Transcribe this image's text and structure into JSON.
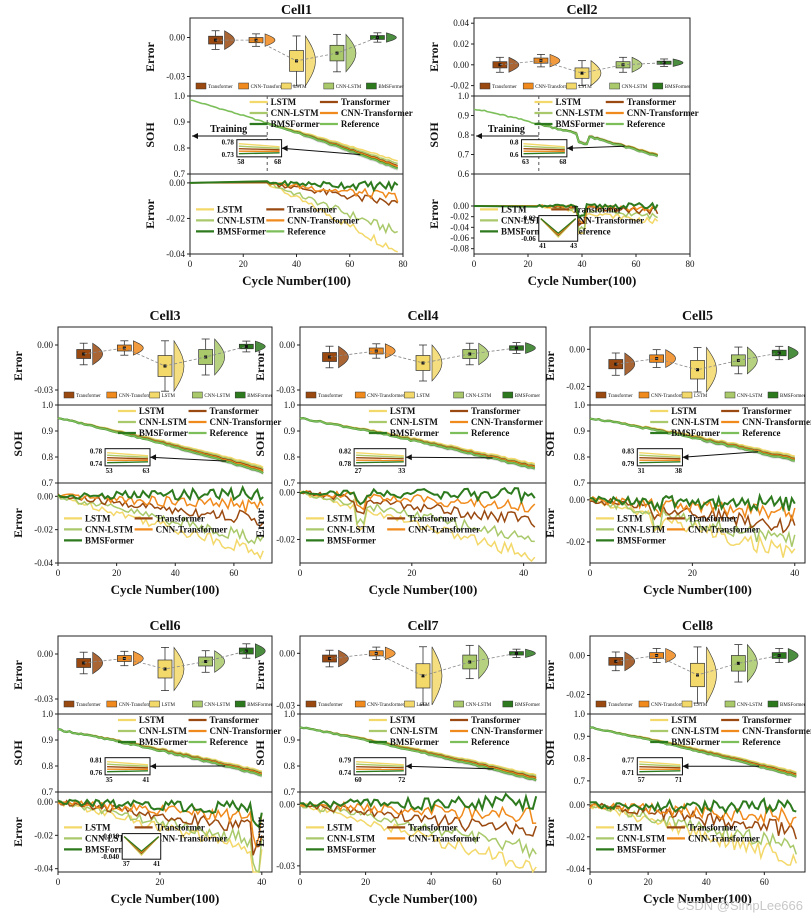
{
  "colors": {
    "Transformer": "#9a4a10",
    "CNN-Transformer": "#f08a1c",
    "LSTM": "#f3d86a",
    "CNN-LSTM": "#a9c96a",
    "BMSFormer": "#2d7a1e",
    "Reference": "#7cbf5a",
    "shade": "#c9c9c9"
  },
  "text": {
    "xlabel": "Cycle Number(100)",
    "soh_label": "SOH",
    "error_label": "Error",
    "training_label": "Training",
    "watermark": "CSDN @SimpLee666"
  },
  "chart_data": [
    {
      "type": "line",
      "title": "Cell1",
      "cell": 1,
      "x_max": 78,
      "xlim": [
        0,
        80
      ],
      "xticks": [
        0,
        20,
        40,
        60,
        80
      ],
      "train_end": 29,
      "soh": {
        "ylim": [
          0.7,
          1.0
        ],
        "yticks": [
          0.7,
          0.8,
          0.9,
          1.0
        ],
        "start": 0.985,
        "end": 0.72,
        "noise": 0.002,
        "dip": null,
        "offsets": {
          "LSTM": 0.03,
          "CNN-LSTM": 0.02,
          "Transformer": 0.012,
          "CNN-Transformer": 0.008,
          "BMSFormer": 0.001
        }
      },
      "err": {
        "ylim": [
          -0.04,
          0.005
        ],
        "yticks": [
          0.0,
          -0.02,
          -0.04
        ],
        "ends": {
          "LSTM": -0.038,
          "CNN-LSTM": -0.028,
          "Transformer": -0.012,
          "CNN-Transformer": -0.008,
          "BMSFormer": -0.002
        },
        "noise": 0.002,
        "spike": null,
        "legend_cols": 2,
        "has_ref": true
      },
      "box": {
        "ylim": [
          -0.045,
          0.015
        ],
        "yticks": [
          0.0,
          -0.03
        ],
        "medians": {
          "Transformer": -0.002,
          "CNN-Transformer": -0.002,
          "LSTM": -0.018,
          "CNN-LSTM": -0.012,
          "BMSFormer": 0.0
        },
        "spreads": {
          "Transformer": 0.006,
          "CNN-Transformer": 0.004,
          "LSTM": 0.016,
          "CNN-LSTM": 0.012,
          "BMSFormer": 0.003
        }
      },
      "inset": {
        "ylo": "0.73",
        "yhi": "0.78",
        "xlo": "58",
        "xhi": "68"
      }
    },
    {
      "type": "line",
      "title": "Cell2",
      "cell": 2,
      "x_max": 68,
      "xlim": [
        0,
        80
      ],
      "xticks": [
        0,
        20,
        40,
        60,
        80
      ],
      "train_end": 24,
      "soh": {
        "ylim": [
          0.6,
          1.0
        ],
        "yticks": [
          0.6,
          0.7,
          0.8,
          0.9,
          1.0
        ],
        "start": 0.935,
        "end": 0.69,
        "noise": 0.004,
        "dip": {
          "at": 40,
          "size": 0.04
        },
        "offsets": {
          "LSTM": 0.01,
          "CNN-LSTM": 0.008,
          "Transformer": 0.006,
          "CNN-Transformer": 0.004,
          "BMSFormer": 0.001
        }
      },
      "err": {
        "ylim": [
          -0.09,
          0.06
        ],
        "yticks": [
          0.0,
          -0.02,
          -0.04,
          -0.06,
          -0.08
        ],
        "ends": {
          "LSTM": -0.03,
          "CNN-LSTM": -0.02,
          "Transformer": -0.01,
          "CNN-Transformer": -0.006,
          "BMSFormer": 0.0
        },
        "noise": 0.004,
        "spike": {
          "at": 40,
          "size": -0.04
        },
        "legend_cols": 2,
        "has_ref": true
      },
      "box": {
        "ylim": [
          -0.03,
          0.045
        ],
        "yticks": [
          0.04,
          0.02,
          0.0,
          -0.02
        ],
        "medians": {
          "Transformer": 0.0,
          "CNN-Transformer": 0.004,
          "LSTM": -0.008,
          "CNN-LSTM": 0.0,
          "BMSFormer": 0.002
        },
        "spreads": {
          "Transformer": 0.006,
          "CNN-Transformer": 0.005,
          "LSTM": 0.01,
          "CNN-LSTM": 0.006,
          "BMSFormer": 0.003
        }
      },
      "inset": {
        "ylo": "0.6",
        "yhi": "0.8",
        "xlo": "63",
        "xhi": "68"
      },
      "err_inset": {
        "ylo": "-0.06",
        "yhi": "-0.02",
        "xlo": "41",
        "xhi": "43"
      }
    },
    {
      "type": "line",
      "title": "Cell3",
      "cell": 3,
      "x_max": 70,
      "xlim": [
        0,
        73
      ],
      "xticks": [
        0,
        20,
        40,
        60
      ],
      "train_end": null,
      "soh": {
        "ylim": [
          0.7,
          1.0
        ],
        "yticks": [
          0.7,
          0.8,
          0.9,
          1.0
        ],
        "start": 0.95,
        "end": 0.74,
        "noise": 0.002,
        "dip": null,
        "offsets": {
          "LSTM": 0.022,
          "CNN-LSTM": 0.016,
          "Transformer": 0.01,
          "CNN-Transformer": 0.006,
          "BMSFormer": 0.0
        }
      },
      "err": {
        "ylim": [
          -0.04,
          0.008
        ],
        "yticks": [
          0.0,
          -0.02,
          -0.04
        ],
        "ends": {
          "LSTM": -0.034,
          "CNN-LSTM": -0.026,
          "Transformer": -0.014,
          "CNN-Transformer": -0.006,
          "BMSFormer": 0.002
        },
        "noise": 0.003,
        "spike": null,
        "legend_cols": 2,
        "has_ref": false
      },
      "box": {
        "ylim": [
          -0.04,
          0.012
        ],
        "yticks": [
          0.0,
          -0.03
        ],
        "medians": {
          "Transformer": -0.006,
          "CNN-Transformer": -0.002,
          "LSTM": -0.014,
          "CNN-LSTM": -0.008,
          "BMSFormer": -0.001
        },
        "spreads": {
          "Transformer": 0.006,
          "CNN-Transformer": 0.004,
          "LSTM": 0.014,
          "CNN-LSTM": 0.01,
          "BMSFormer": 0.003
        }
      },
      "inset": {
        "ylo": "0.74",
        "yhi": "0.78",
        "xlo": "53",
        "xhi": "63"
      }
    },
    {
      "type": "line",
      "title": "Cell4",
      "cell": 4,
      "x_max": 42,
      "xlim": [
        0,
        44
      ],
      "xticks": [
        0,
        20,
        40
      ],
      "train_end": null,
      "soh": {
        "ylim": [
          0.7,
          1.0
        ],
        "yticks": [
          0.7,
          0.8,
          0.9,
          1.0
        ],
        "start": 0.95,
        "end": 0.755,
        "noise": 0.003,
        "dip": null,
        "offsets": {
          "LSTM": 0.018,
          "CNN-LSTM": 0.012,
          "Transformer": 0.008,
          "CNN-Transformer": 0.005,
          "BMSFormer": 0.0
        }
      },
      "err": {
        "ylim": [
          -0.03,
          0.004
        ],
        "yticks": [
          0.0,
          -0.02
        ],
        "ends": {
          "LSTM": -0.027,
          "CNN-LSTM": -0.02,
          "Transformer": -0.012,
          "CNN-Transformer": -0.006,
          "BMSFormer": -0.001
        },
        "noise": 0.002,
        "spike": {
          "at": 11,
          "size": -0.008
        },
        "legend_cols": 2,
        "has_ref": false
      },
      "box": {
        "ylim": [
          -0.04,
          0.012
        ],
        "yticks": [
          0.0,
          -0.03
        ],
        "medians": {
          "Transformer": -0.008,
          "CNN-Transformer": -0.004,
          "LSTM": -0.012,
          "CNN-LSTM": -0.006,
          "BMSFormer": -0.002
        },
        "spreads": {
          "Transformer": 0.006,
          "CNN-Transformer": 0.004,
          "LSTM": 0.01,
          "CNN-LSTM": 0.006,
          "BMSFormer": 0.003
        }
      },
      "inset": {
        "ylo": "0.78",
        "yhi": "0.82",
        "xlo": "27",
        "xhi": "33"
      }
    },
    {
      "type": "line",
      "title": "Cell5",
      "cell": 5,
      "x_max": 40,
      "xlim": [
        0,
        42
      ],
      "xticks": [
        0,
        20,
        40
      ],
      "train_end": null,
      "soh": {
        "ylim": [
          0.7,
          1.0
        ],
        "yticks": [
          0.7,
          0.8,
          0.9,
          1.0
        ],
        "start": 0.95,
        "end": 0.785,
        "noise": 0.003,
        "dip": null,
        "offsets": {
          "LSTM": 0.018,
          "CNN-LSTM": 0.012,
          "Transformer": 0.008,
          "CNN-Transformer": 0.005,
          "BMSFormer": 0.0
        }
      },
      "err": {
        "ylim": [
          -0.03,
          0.008
        ],
        "yticks": [
          0.0,
          -0.02
        ],
        "ends": {
          "LSTM": -0.026,
          "CNN-LSTM": -0.02,
          "Transformer": -0.012,
          "CNN-Transformer": -0.006,
          "BMSFormer": -0.002
        },
        "noise": 0.003,
        "spike": {
          "at": 13,
          "size": -0.006
        },
        "legend_cols": 2,
        "has_ref": false
      },
      "box": {
        "ylim": [
          -0.03,
          0.012
        ],
        "yticks": [
          0.0,
          -0.02
        ],
        "medians": {
          "Transformer": -0.008,
          "CNN-Transformer": -0.005,
          "LSTM": -0.011,
          "CNN-LSTM": -0.006,
          "BMSFormer": -0.002
        },
        "spreads": {
          "Transformer": 0.005,
          "CNN-Transformer": 0.004,
          "LSTM": 0.01,
          "CNN-LSTM": 0.006,
          "BMSFormer": 0.003
        }
      },
      "inset": {
        "ylo": "0.79",
        "yhi": "0.83",
        "xlo": "31",
        "xhi": "38"
      }
    },
    {
      "type": "line",
      "title": "Cell6",
      "cell": 6,
      "x_max": 40,
      "xlim": [
        0,
        42
      ],
      "xticks": [
        0,
        20,
        40
      ],
      "train_end": null,
      "soh": {
        "ylim": [
          0.7,
          1.0
        ],
        "yticks": [
          0.7,
          0.8,
          0.9,
          1.0
        ],
        "start": 0.94,
        "end": 0.765,
        "noise": 0.003,
        "dip": null,
        "offsets": {
          "LSTM": 0.016,
          "CNN-LSTM": 0.012,
          "Transformer": 0.008,
          "CNN-Transformer": 0.005,
          "BMSFormer": 0.0
        }
      },
      "err": {
        "ylim": [
          -0.042,
          0.006
        ],
        "yticks": [
          0.0,
          -0.02,
          -0.04
        ],
        "ends": {
          "LSTM": -0.03,
          "CNN-LSTM": -0.024,
          "Transformer": -0.016,
          "CNN-Transformer": -0.01,
          "BMSFormer": -0.004
        },
        "noise": 0.003,
        "spike": {
          "at": 39,
          "size": -0.02
        },
        "legend_cols": 2,
        "has_ref": false
      },
      "box": {
        "ylim": [
          -0.04,
          0.012
        ],
        "yticks": [
          0.0,
          -0.03
        ],
        "medians": {
          "Transformer": -0.006,
          "CNN-Transformer": -0.003,
          "LSTM": -0.01,
          "CNN-LSTM": -0.005,
          "BMSFormer": 0.002
        },
        "spreads": {
          "Transformer": 0.006,
          "CNN-Transformer": 0.004,
          "LSTM": 0.012,
          "CNN-LSTM": 0.006,
          "BMSFormer": 0.004
        }
      },
      "inset": {
        "ylo": "0.76",
        "yhi": "0.81",
        "xlo": "35",
        "xhi": "41"
      },
      "err_inset": {
        "ylo": "-0.040",
        "yhi": "-0.010",
        "xlo": "37",
        "xhi": "41"
      }
    },
    {
      "type": "line",
      "title": "Cell7",
      "cell": 7,
      "x_max": 72,
      "xlim": [
        0,
        75
      ],
      "xticks": [
        0,
        20,
        40,
        60
      ],
      "train_end": null,
      "soh": {
        "ylim": [
          0.7,
          1.0
        ],
        "yticks": [
          0.7,
          0.8,
          0.9,
          1.0
        ],
        "start": 0.95,
        "end": 0.745,
        "noise": 0.002,
        "dip": null,
        "offsets": {
          "LSTM": 0.02,
          "CNN-LSTM": 0.015,
          "Transformer": 0.01,
          "CNN-Transformer": 0.006,
          "BMSFormer": 0.0
        }
      },
      "err": {
        "ylim": [
          -0.033,
          0.006
        ],
        "yticks": [
          0.0,
          -0.03
        ],
        "ends": {
          "LSTM": -0.03,
          "CNN-LSTM": -0.022,
          "Transformer": -0.014,
          "CNN-Transformer": -0.006,
          "BMSFormer": 0.001
        },
        "noise": 0.003,
        "spike": null,
        "legend_cols": 2,
        "has_ref": false
      },
      "box": {
        "ylim": [
          -0.035,
          0.01
        ],
        "yticks": [
          0.0,
          -0.03
        ],
        "medians": {
          "Transformer": -0.003,
          "CNN-Transformer": 0.0,
          "LSTM": -0.013,
          "CNN-LSTM": -0.005,
          "BMSFormer": 0.0
        },
        "spreads": {
          "Transformer": 0.004,
          "CNN-Transformer": 0.003,
          "LSTM": 0.014,
          "CNN-LSTM": 0.008,
          "BMSFormer": 0.002
        }
      },
      "inset": {
        "ylo": "0.74",
        "yhi": "0.79",
        "xlo": "60",
        "xhi": "72"
      }
    },
    {
      "type": "line",
      "title": "Cell8",
      "cell": 8,
      "x_max": 71,
      "xlim": [
        0,
        74
      ],
      "xticks": [
        0,
        20,
        40,
        60
      ],
      "train_end": null,
      "soh": {
        "ylim": [
          0.65,
          1.0
        ],
        "yticks": [
          0.7,
          0.8,
          0.9,
          1.0
        ],
        "start": 0.94,
        "end": 0.72,
        "noise": 0.002,
        "dip": null,
        "offsets": {
          "LSTM": 0.02,
          "CNN-LSTM": 0.015,
          "Transformer": 0.01,
          "CNN-Transformer": 0.006,
          "BMSFormer": 0.0
        }
      },
      "err": {
        "ylim": [
          -0.042,
          0.008
        ],
        "yticks": [
          0.0,
          -0.02,
          -0.04
        ],
        "ends": {
          "LSTM": -0.034,
          "CNN-LSTM": -0.026,
          "Transformer": -0.016,
          "CNN-Transformer": -0.008,
          "BMSFormer": -0.002
        },
        "noise": 0.004,
        "spike": null,
        "legend_cols": 2,
        "has_ref": false
      },
      "box": {
        "ylim": [
          -0.03,
          0.01
        ],
        "yticks": [
          0.0,
          -0.02
        ],
        "medians": {
          "Transformer": -0.003,
          "CNN-Transformer": 0.0,
          "LSTM": -0.01,
          "CNN-LSTM": -0.004,
          "BMSFormer": 0.0
        },
        "spreads": {
          "Transformer": 0.004,
          "CNN-Transformer": 0.003,
          "LSTM": 0.012,
          "CNN-LSTM": 0.008,
          "BMSFormer": 0.003
        }
      },
      "inset": {
        "ylo": "0.71",
        "yhi": "0.77",
        "xlo": "57",
        "xhi": "71"
      }
    }
  ]
}
